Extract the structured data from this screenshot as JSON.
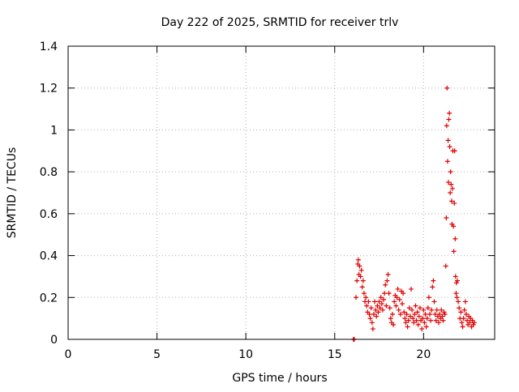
{
  "chart_data": {
    "type": "scatter",
    "title": "Day 222 of 2025, SRMTID for receiver trlv",
    "xlabel": "GPS time / hours",
    "ylabel": "SRMTID / TECUs",
    "xlim": [
      0,
      24
    ],
    "ylim": [
      0,
      1.4
    ],
    "x_ticks": [
      0,
      5,
      10,
      15,
      20
    ],
    "x_tick_labels": [
      "0",
      "5",
      "10",
      "15",
      "20"
    ],
    "y_ticks": [
      0,
      0.2,
      0.4,
      0.6,
      0.8,
      1.0,
      1.2,
      1.4
    ],
    "y_tick_labels": [
      "0",
      "0.2",
      "0.4",
      "0.6",
      "0.8",
      "1",
      "1.2",
      "1.4"
    ],
    "grid": true,
    "marker": "+",
    "colors": {
      "series": "#e00000",
      "grid": "#b0b0b0",
      "axis": "#000000"
    },
    "series": [
      {
        "name": "SRMTID",
        "points": [
          [
            16.05,
            0.0
          ],
          [
            16.1,
            0.0
          ],
          [
            16.2,
            0.2
          ],
          [
            16.25,
            0.28
          ],
          [
            16.3,
            0.36
          ],
          [
            16.33,
            0.38
          ],
          [
            16.36,
            0.31
          ],
          [
            16.4,
            0.35
          ],
          [
            16.45,
            0.3
          ],
          [
            16.5,
            0.33
          ],
          [
            16.55,
            0.25
          ],
          [
            16.6,
            0.28
          ],
          [
            16.65,
            0.22
          ],
          [
            16.7,
            0.18
          ],
          [
            16.75,
            0.2
          ],
          [
            16.8,
            0.16
          ],
          [
            16.85,
            0.13
          ],
          [
            16.9,
            0.18
          ],
          [
            16.95,
            0.12
          ],
          [
            17.0,
            0.1
          ],
          [
            17.05,
            0.15
          ],
          [
            17.1,
            0.08
          ],
          [
            17.15,
            0.05
          ],
          [
            17.2,
            0.12
          ],
          [
            17.25,
            0.18
          ],
          [
            17.3,
            0.14
          ],
          [
            17.35,
            0.11
          ],
          [
            17.4,
            0.16
          ],
          [
            17.45,
            0.13
          ],
          [
            17.5,
            0.18
          ],
          [
            17.55,
            0.15
          ],
          [
            17.6,
            0.2
          ],
          [
            17.65,
            0.17
          ],
          [
            17.7,
            0.14
          ],
          [
            17.75,
            0.19
          ],
          [
            17.8,
            0.22
          ],
          [
            17.85,
            0.26
          ],
          [
            17.9,
            0.16
          ],
          [
            17.95,
            0.28
          ],
          [
            18.0,
            0.31
          ],
          [
            18.05,
            0.22
          ],
          [
            18.1,
            0.15
          ],
          [
            18.15,
            0.1
          ],
          [
            18.2,
            0.08
          ],
          [
            18.25,
            0.12
          ],
          [
            18.3,
            0.07
          ],
          [
            18.35,
            0.18
          ],
          [
            18.4,
            0.21
          ],
          [
            18.45,
            0.16
          ],
          [
            18.5,
            0.2
          ],
          [
            18.55,
            0.24
          ],
          [
            18.6,
            0.14
          ],
          [
            18.65,
            0.19
          ],
          [
            18.7,
            0.12
          ],
          [
            18.75,
            0.23
          ],
          [
            18.8,
            0.17
          ],
          [
            18.85,
            0.22
          ],
          [
            18.9,
            0.13
          ],
          [
            18.95,
            0.1
          ],
          [
            19.0,
            0.08
          ],
          [
            19.05,
            0.12
          ],
          [
            19.1,
            0.06
          ],
          [
            19.15,
            0.09
          ],
          [
            19.2,
            0.15
          ],
          [
            19.25,
            0.11
          ],
          [
            19.3,
            0.24
          ],
          [
            19.35,
            0.14
          ],
          [
            19.4,
            0.1
          ],
          [
            19.45,
            0.08
          ],
          [
            19.5,
            0.12
          ],
          [
            19.55,
            0.16
          ],
          [
            19.6,
            0.09
          ],
          [
            19.65,
            0.13
          ],
          [
            19.7,
            0.07
          ],
          [
            19.75,
            0.11
          ],
          [
            19.8,
            0.15
          ],
          [
            19.85,
            0.09
          ],
          [
            19.9,
            0.05
          ],
          [
            19.95,
            0.1
          ],
          [
            20.0,
            0.14
          ],
          [
            20.05,
            0.08
          ],
          [
            20.1,
            0.12
          ],
          [
            20.15,
            0.06
          ],
          [
            20.2,
            0.1
          ],
          [
            20.25,
            0.15
          ],
          [
            20.3,
            0.2
          ],
          [
            20.35,
            0.12
          ],
          [
            20.4,
            0.09
          ],
          [
            20.45,
            0.14
          ],
          [
            20.5,
            0.25
          ],
          [
            20.55,
            0.28
          ],
          [
            20.6,
            0.18
          ],
          [
            20.65,
            0.12
          ],
          [
            20.7,
            0.09
          ],
          [
            20.75,
            0.14
          ],
          [
            20.8,
            0.11
          ],
          [
            20.85,
            0.08
          ],
          [
            20.9,
            0.12
          ],
          [
            20.95,
            0.1
          ],
          [
            21.0,
            0.14
          ],
          [
            21.05,
            0.11
          ],
          [
            21.1,
            0.09
          ],
          [
            21.15,
            0.13
          ],
          [
            21.2,
            0.12
          ],
          [
            21.25,
            0.35
          ],
          [
            21.28,
            0.58
          ],
          [
            21.3,
            1.02
          ],
          [
            21.32,
            1.2
          ],
          [
            21.35,
            0.85
          ],
          [
            21.38,
            0.95
          ],
          [
            21.4,
            0.75
          ],
          [
            21.42,
            1.05
          ],
          [
            21.45,
            1.08
          ],
          [
            21.47,
            0.92
          ],
          [
            21.5,
            0.7
          ],
          [
            21.52,
            0.8
          ],
          [
            21.55,
            0.74
          ],
          [
            21.58,
            0.66
          ],
          [
            21.6,
            0.55
          ],
          [
            21.62,
            0.72
          ],
          [
            21.65,
            0.9
          ],
          [
            21.68,
            0.54
          ],
          [
            21.7,
            0.42
          ],
          [
            21.73,
            0.65
          ],
          [
            21.75,
            0.9
          ],
          [
            21.78,
            0.48
          ],
          [
            21.8,
            0.3
          ],
          [
            21.83,
            0.22
          ],
          [
            21.85,
            0.27
          ],
          [
            21.88,
            0.2
          ],
          [
            21.9,
            0.28
          ],
          [
            21.95,
            0.18
          ],
          [
            22.0,
            0.15
          ],
          [
            22.05,
            0.1
          ],
          [
            22.1,
            0.13
          ],
          [
            22.15,
            0.08
          ],
          [
            22.2,
            0.06
          ],
          [
            22.25,
            0.1
          ],
          [
            22.3,
            0.14
          ],
          [
            22.35,
            0.18
          ],
          [
            22.4,
            0.12
          ],
          [
            22.45,
            0.09
          ],
          [
            22.5,
            0.07
          ],
          [
            22.55,
            0.11
          ],
          [
            22.6,
            0.08
          ],
          [
            22.65,
            0.1
          ],
          [
            22.7,
            0.06
          ],
          [
            22.75,
            0.09
          ],
          [
            22.8,
            0.07
          ],
          [
            22.85,
            0.08
          ]
        ]
      }
    ]
  }
}
